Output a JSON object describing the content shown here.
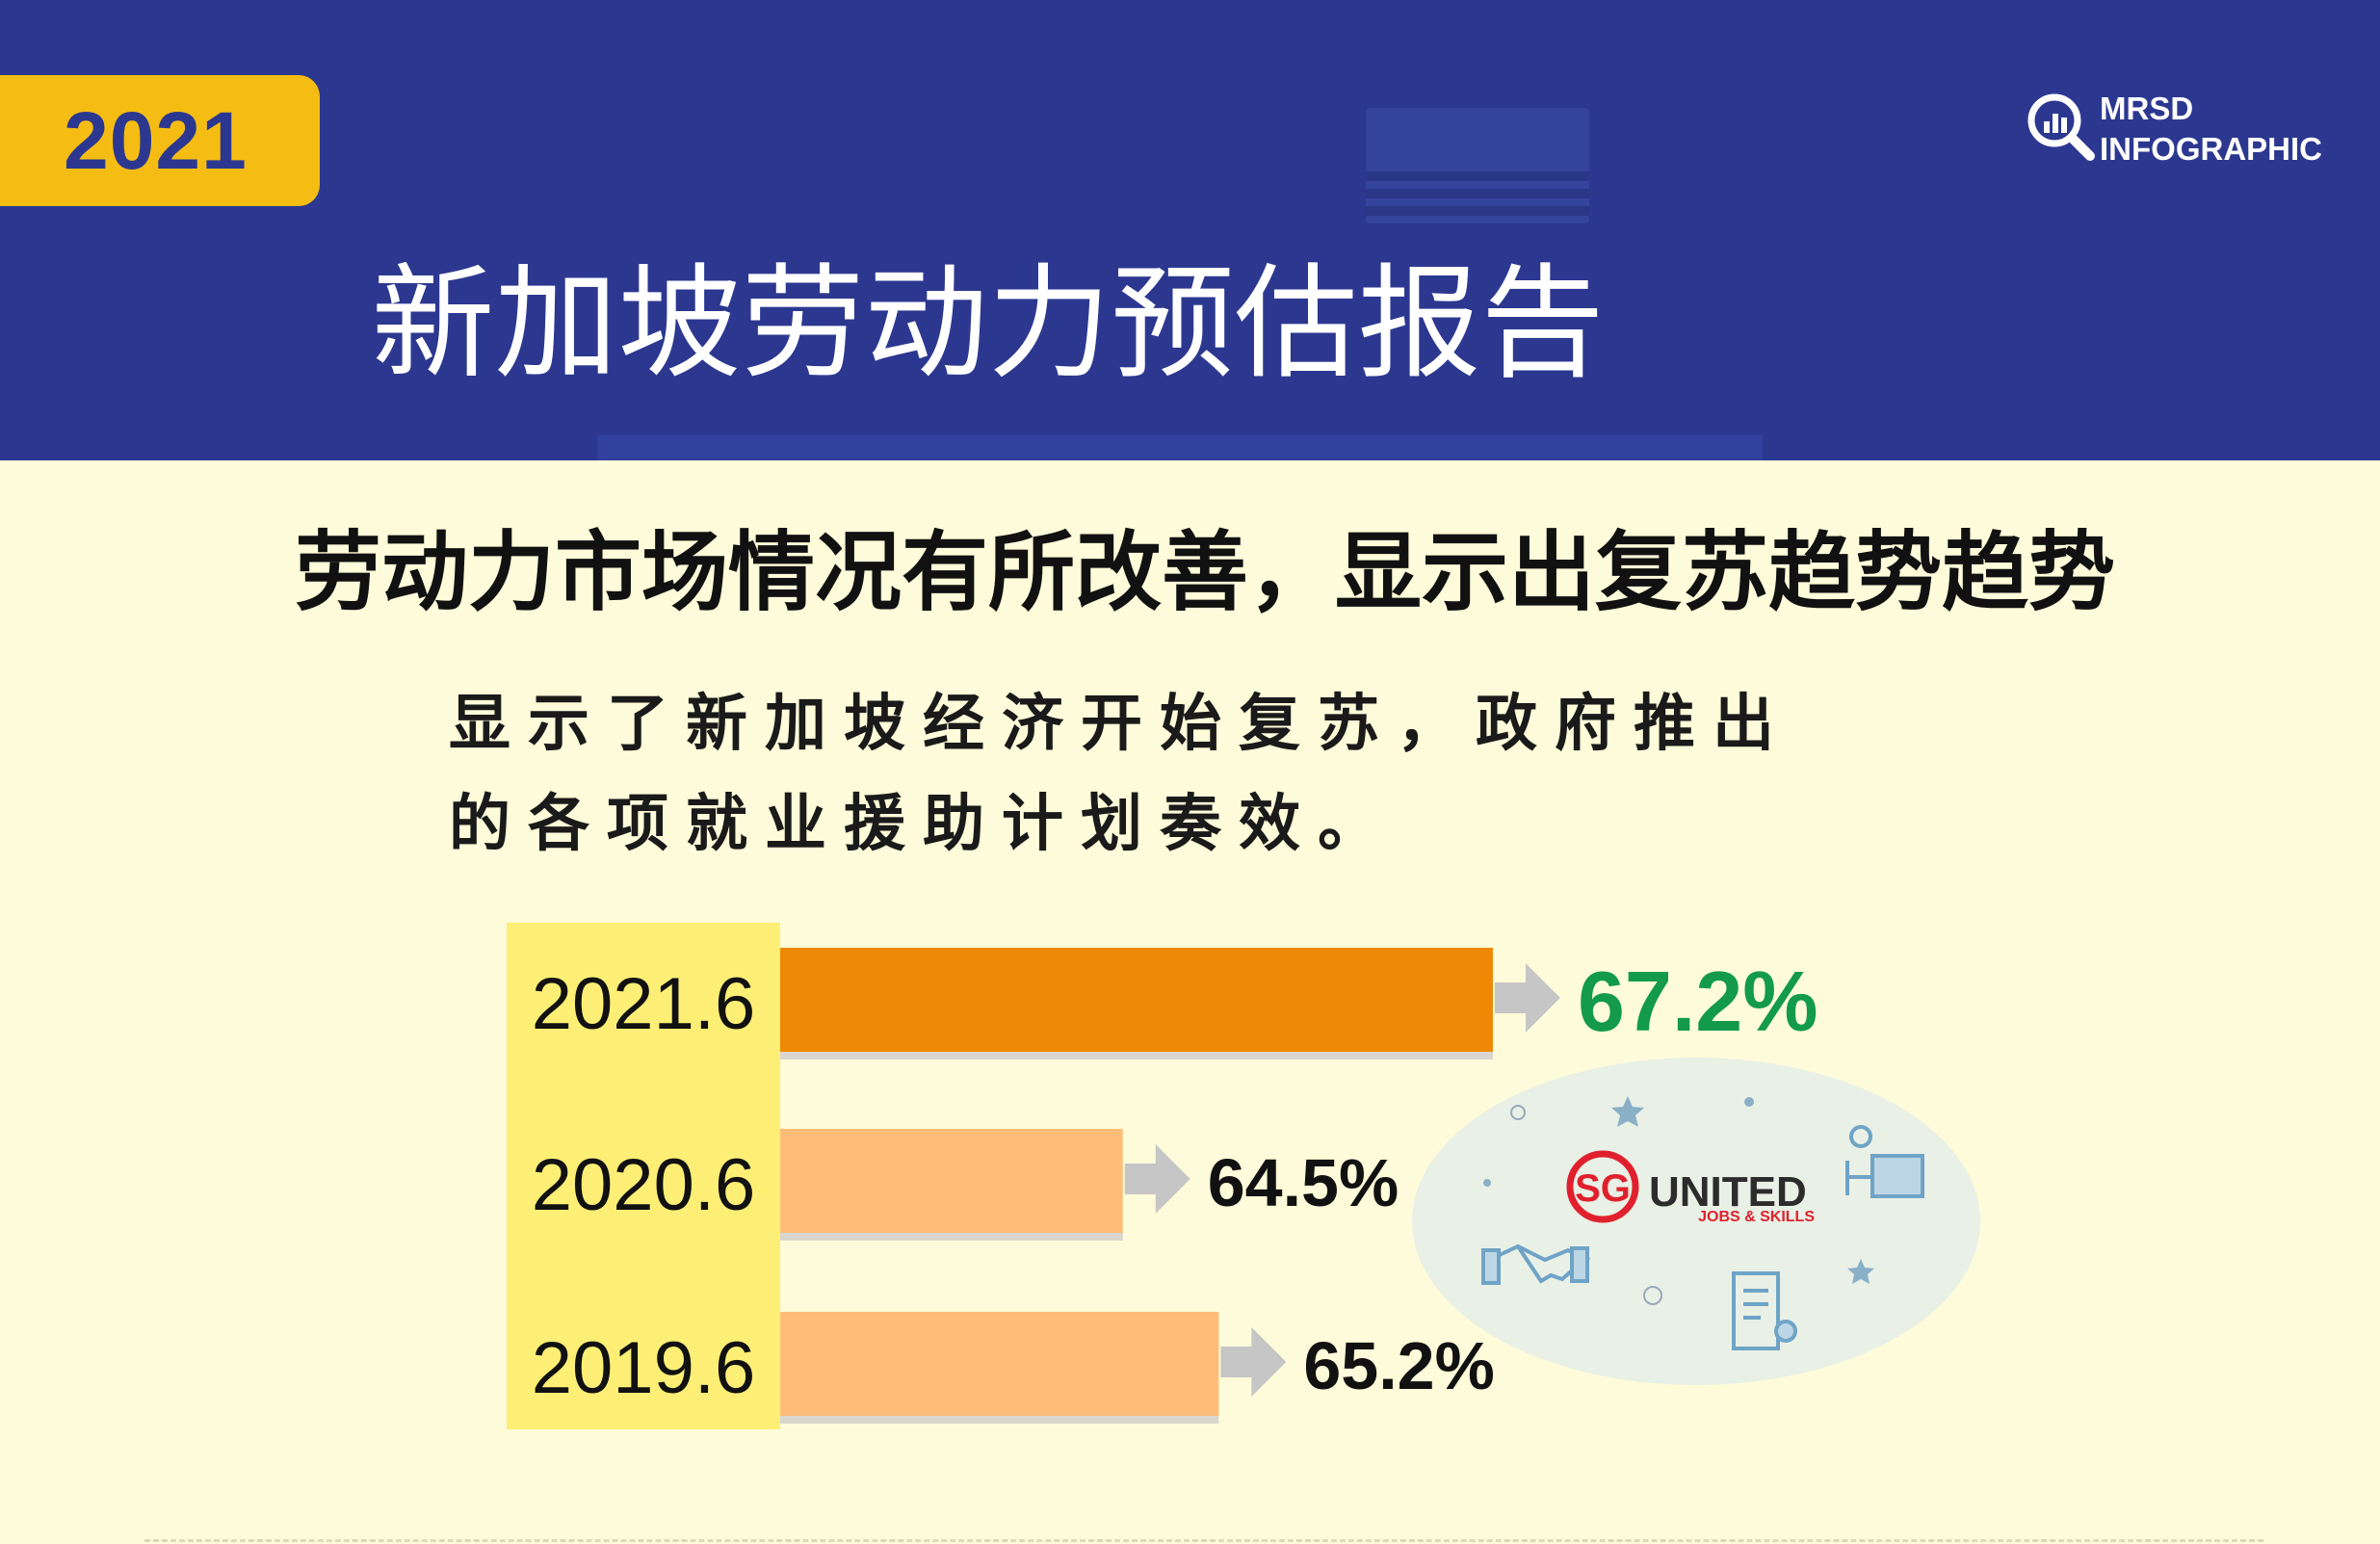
{
  "header": {
    "year": "2021",
    "brand_line1": "MRSD",
    "brand_line2": "INFOGRAPHIC",
    "title": "新加坡劳动力预估报告"
  },
  "subtitle": "劳动力市场情况有所改善，显示出复苏趋势趋势",
  "body": {
    "line1": "显示了新加坡经济开始复苏，政府推出",
    "line2": "的各项就业援助计划奏效。"
  },
  "badge": {
    "logo_mark": "SG",
    "logo_word": "UNITED",
    "logo_sub": "JOBS & SKILLS",
    "icons": [
      "star-icon",
      "desk-worker-icon",
      "handshake-icon",
      "certificate-icon"
    ]
  },
  "chart_data": {
    "type": "bar",
    "orientation": "horizontal",
    "categories": [
      "2021.6",
      "2020.6",
      "2019.6"
    ],
    "values": [
      67.2,
      64.5,
      65.2
    ],
    "value_labels": [
      "67.2%",
      "64.5%",
      "65.2%"
    ],
    "title": "",
    "xlabel": "",
    "ylabel": "",
    "colors": {
      "highlight_bar": "#ef8805",
      "bar": "#fdbd79",
      "highlight_label": "#139a4b",
      "label": "#111111",
      "arrow": "#c6c6c6",
      "category_band": "#fdef75"
    },
    "highlight_index": 0
  },
  "colors": {
    "header_bg": "#2c3890",
    "year_badge": "#f5bd13",
    "page_bg": "#fdfbd9"
  }
}
